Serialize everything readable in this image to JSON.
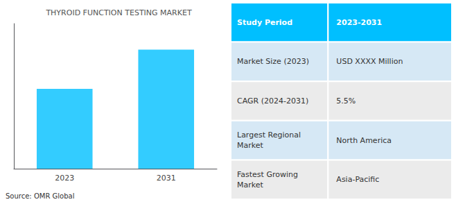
{
  "chart_data": [
    {
      "type": "bar",
      "title": "THYROID FUNCTION TESTING MARKET",
      "categories": [
        "2023",
        "2031"
      ],
      "values": [
        0.55,
        0.82
      ],
      "color": "#33CCFF",
      "ylim": [
        0,
        1.0
      ],
      "yticks": [],
      "tick_labels": "x",
      "grid": false,
      "annotations": [
        "Source: OMR Global"
      ]
    },
    {
      "type": "table",
      "header": [
        "Study Period",
        "2023-2031"
      ],
      "rows": [
        [
          "Market Size (2023)",
          "USD XXXX Million"
        ],
        [
          "CAGR (2024-2031)",
          "5.5%"
        ],
        [
          "Largest Regional\nMarket",
          "North America"
        ],
        [
          "Fastest Growing\nMarket",
          "Asia-Pacific"
        ]
      ],
      "colors": [
        "#00BFFF",
        "#d6e8f5",
        "#ebebeb",
        "#d6e8f5",
        "#ebebeb"
      ]
    }
  ]
}
